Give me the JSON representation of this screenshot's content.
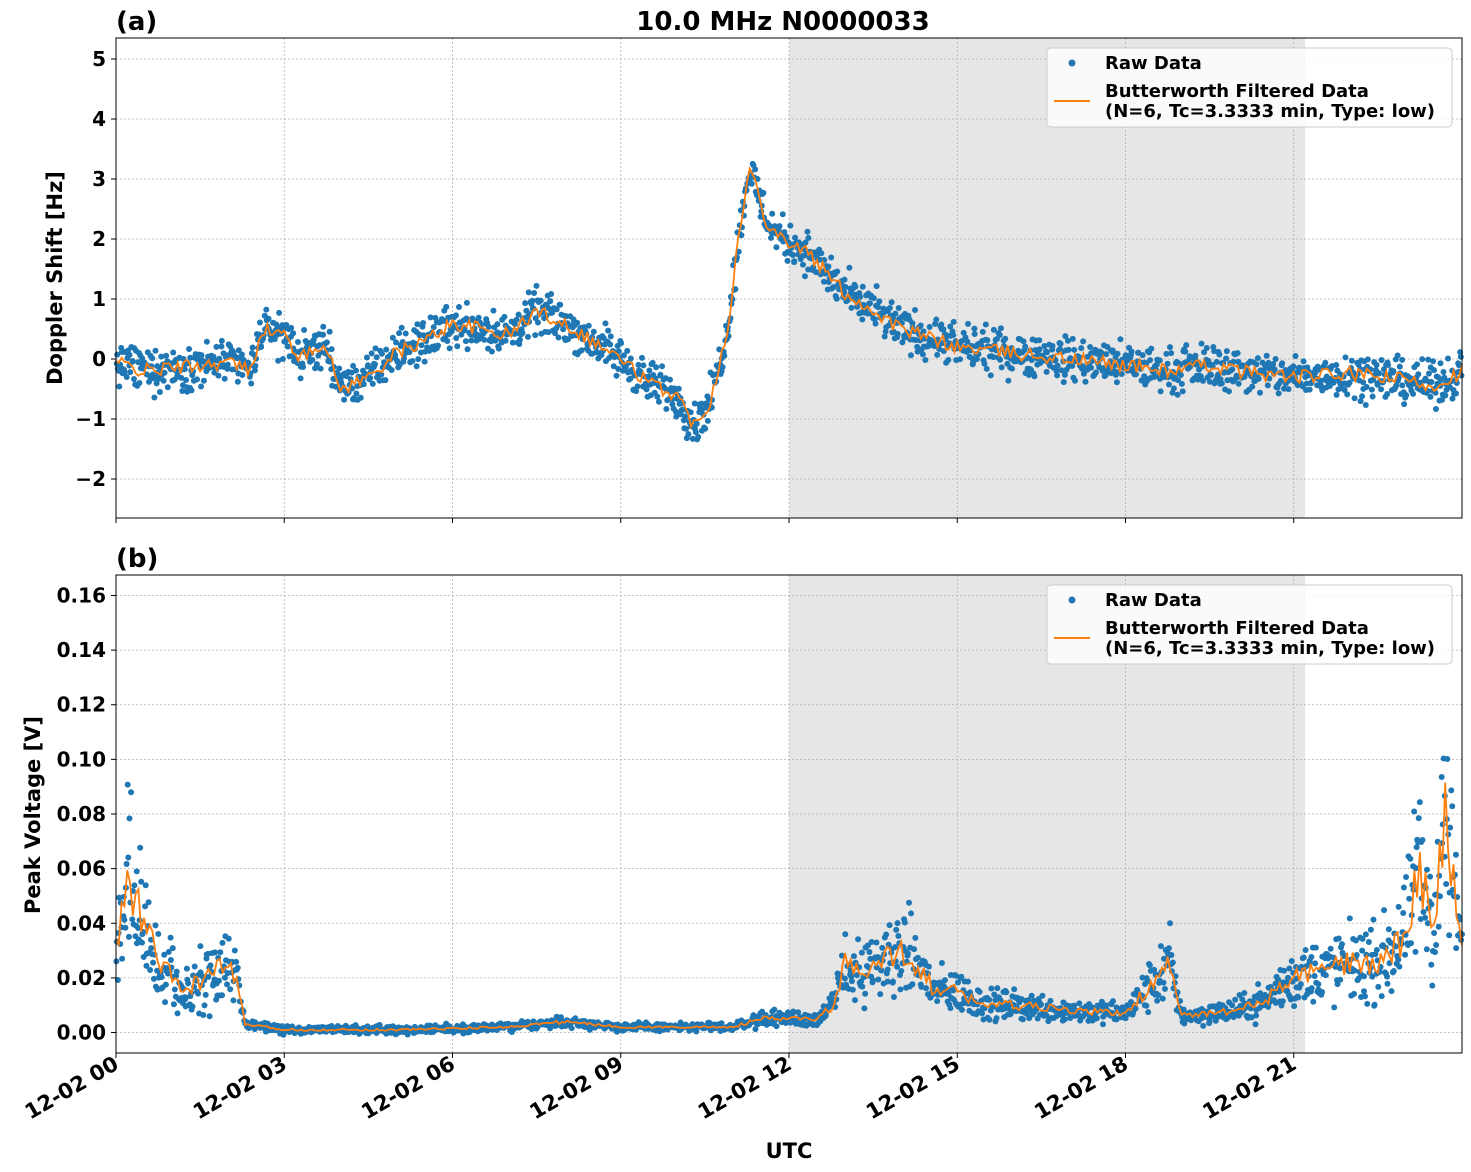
{
  "figure": {
    "title": "10.0 MHz N0000033",
    "xlabel": "UTC",
    "x_tick_labels": [
      "12-02 00",
      "12-02 03",
      "12-02 06",
      "12-02 09",
      "12-02 12",
      "12-02 15",
      "12-02 18",
      "12-02 21"
    ],
    "colors": {
      "raw": "#1f77b4",
      "filtered": "#ff7f0e",
      "shade": "#e6e6e6",
      "grid": "#b0b0b0"
    }
  },
  "chart_data": [
    {
      "type": "scatter",
      "panel_label": "(a)",
      "ylabel": "Doppler Shift [Hz]",
      "xlim": [
        0,
        24
      ],
      "ylim": [
        -2.65,
        5.35
      ],
      "y_ticks": [
        -2,
        -1,
        0,
        1,
        2,
        3,
        4,
        5
      ],
      "y_tick_labels": [
        "−2",
        "−1",
        "0",
        "1",
        "2",
        "3",
        "4",
        "5"
      ],
      "shaded_region": [
        12.0,
        21.2
      ],
      "grid": true,
      "legend_position": "top-right",
      "legend": [
        "Raw Data",
        "Butterworth Filtered Data",
        "(N=6, Tc=3.3333 min, Type: low)"
      ],
      "series": [
        {
          "name": "Raw Data",
          "kind": "points",
          "jitter": 0.35,
          "x": [
            0,
            0.5,
            1,
            1.5,
            2,
            2.4,
            2.6,
            3,
            3.3,
            3.7,
            4,
            4.5,
            5,
            5.5,
            6,
            6.5,
            7,
            7.5,
            8,
            8.5,
            9,
            9.5,
            10,
            10.3,
            10.6,
            10.9,
            11.1,
            11.3,
            11.6,
            11.9,
            12.3,
            12.7,
            13,
            13.5,
            14,
            15,
            16,
            17,
            18,
            18.8,
            19.5,
            20,
            21,
            22,
            22.5,
            23,
            23.5,
            24
          ],
          "y": [
            -0.05,
            -0.2,
            -0.15,
            -0.1,
            -0.05,
            -0.2,
            0.5,
            0.4,
            0.0,
            0.3,
            -0.5,
            -0.3,
            0.1,
            0.3,
            0.6,
            0.5,
            0.4,
            0.8,
            0.6,
            0.3,
            0.0,
            -0.4,
            -0.6,
            -1.1,
            -0.7,
            0.5,
            2.0,
            3.2,
            2.3,
            2.0,
            1.8,
            1.4,
            1.1,
            0.8,
            0.5,
            0.2,
            0.1,
            0.0,
            -0.1,
            -0.2,
            -0.1,
            -0.2,
            -0.3,
            -0.25,
            -0.3,
            -0.35,
            -0.45,
            -0.2
          ]
        },
        {
          "name": "Butterworth Filtered Data",
          "kind": "line",
          "x": [
            0,
            0.5,
            1,
            1.5,
            2,
            2.4,
            2.6,
            3,
            3.3,
            3.7,
            4,
            4.5,
            5,
            5.5,
            6,
            6.5,
            7,
            7.5,
            8,
            8.5,
            9,
            9.5,
            10,
            10.3,
            10.6,
            10.9,
            11.1,
            11.3,
            11.6,
            11.9,
            12.3,
            12.7,
            13,
            13.5,
            14,
            15,
            16,
            17,
            18,
            18.8,
            19.5,
            20,
            21,
            22,
            22.5,
            23,
            23.5,
            24
          ],
          "y": [
            -0.05,
            -0.2,
            -0.15,
            -0.1,
            -0.05,
            -0.2,
            0.5,
            0.4,
            0.0,
            0.3,
            -0.5,
            -0.3,
            0.1,
            0.3,
            0.6,
            0.5,
            0.4,
            0.8,
            0.6,
            0.3,
            0.0,
            -0.4,
            -0.6,
            -1.1,
            -0.7,
            0.5,
            2.0,
            3.2,
            2.3,
            2.0,
            1.8,
            1.4,
            1.1,
            0.8,
            0.5,
            0.2,
            0.1,
            0.0,
            -0.1,
            -0.2,
            -0.1,
            -0.2,
            -0.3,
            -0.25,
            -0.3,
            -0.35,
            -0.45,
            -0.2
          ]
        }
      ]
    },
    {
      "type": "scatter",
      "panel_label": "(b)",
      "ylabel": "Peak Voltage [V]",
      "xlim": [
        0,
        24
      ],
      "ylim": [
        -0.0075,
        0.1675
      ],
      "y_ticks": [
        0.0,
        0.02,
        0.04,
        0.06,
        0.08,
        0.1,
        0.12,
        0.14,
        0.16
      ],
      "y_tick_labels": [
        "0.00",
        "0.02",
        "0.04",
        "0.06",
        "0.08",
        "0.10",
        "0.12",
        "0.14",
        "0.16"
      ],
      "shaded_region": [
        12.0,
        21.2
      ],
      "grid": true,
      "legend_position": "top-right",
      "legend": [
        "Raw Data",
        "Butterworth Filtered Data",
        "(N=6, Tc=3.3333 min, Type: low)"
      ],
      "series": [
        {
          "name": "Raw Data",
          "kind": "points",
          "jitter": 0.012,
          "x": [
            0,
            0.2,
            0.5,
            0.8,
            1.2,
            1.6,
            2.0,
            2.2,
            2.3,
            3,
            5,
            7,
            7.5,
            8,
            8.5,
            9,
            10,
            11,
            11.5,
            12,
            12.5,
            12.8,
            13.0,
            13.3,
            13.6,
            14,
            14.3,
            14.6,
            15,
            15.5,
            16,
            17,
            18,
            18.8,
            19,
            20,
            20.5,
            21,
            22,
            22.5,
            23,
            23.2,
            23.5,
            23.7,
            24
          ],
          "y": [
            0.03,
            0.055,
            0.04,
            0.025,
            0.015,
            0.02,
            0.025,
            0.015,
            0.003,
            0.001,
            0.001,
            0.002,
            0.003,
            0.004,
            0.003,
            0.002,
            0.002,
            0.002,
            0.005,
            0.005,
            0.005,
            0.01,
            0.025,
            0.02,
            0.025,
            0.03,
            0.025,
            0.015,
            0.015,
            0.01,
            0.01,
            0.008,
            0.007,
            0.025,
            0.006,
            0.008,
            0.012,
            0.02,
            0.025,
            0.025,
            0.035,
            0.06,
            0.04,
            0.08,
            0.03
          ]
        },
        {
          "name": "Butterworth Filtered Data",
          "kind": "line",
          "x": [
            0,
            0.2,
            0.5,
            0.8,
            1.2,
            1.6,
            2.0,
            2.2,
            2.3,
            3,
            5,
            7,
            7.5,
            8,
            8.5,
            9,
            10,
            11,
            11.5,
            12,
            12.5,
            12.8,
            13.0,
            13.3,
            13.6,
            14,
            14.3,
            14.6,
            15,
            15.5,
            16,
            17,
            18,
            18.8,
            19,
            20,
            20.5,
            21,
            22,
            22.5,
            23,
            23.2,
            23.5,
            23.7,
            24
          ],
          "y": [
            0.03,
            0.055,
            0.04,
            0.025,
            0.015,
            0.02,
            0.025,
            0.015,
            0.003,
            0.001,
            0.001,
            0.002,
            0.003,
            0.004,
            0.003,
            0.002,
            0.002,
            0.002,
            0.005,
            0.005,
            0.005,
            0.01,
            0.025,
            0.02,
            0.025,
            0.03,
            0.025,
            0.015,
            0.015,
            0.01,
            0.01,
            0.008,
            0.007,
            0.025,
            0.006,
            0.008,
            0.012,
            0.02,
            0.025,
            0.025,
            0.035,
            0.06,
            0.04,
            0.08,
            0.03
          ]
        }
      ]
    }
  ]
}
